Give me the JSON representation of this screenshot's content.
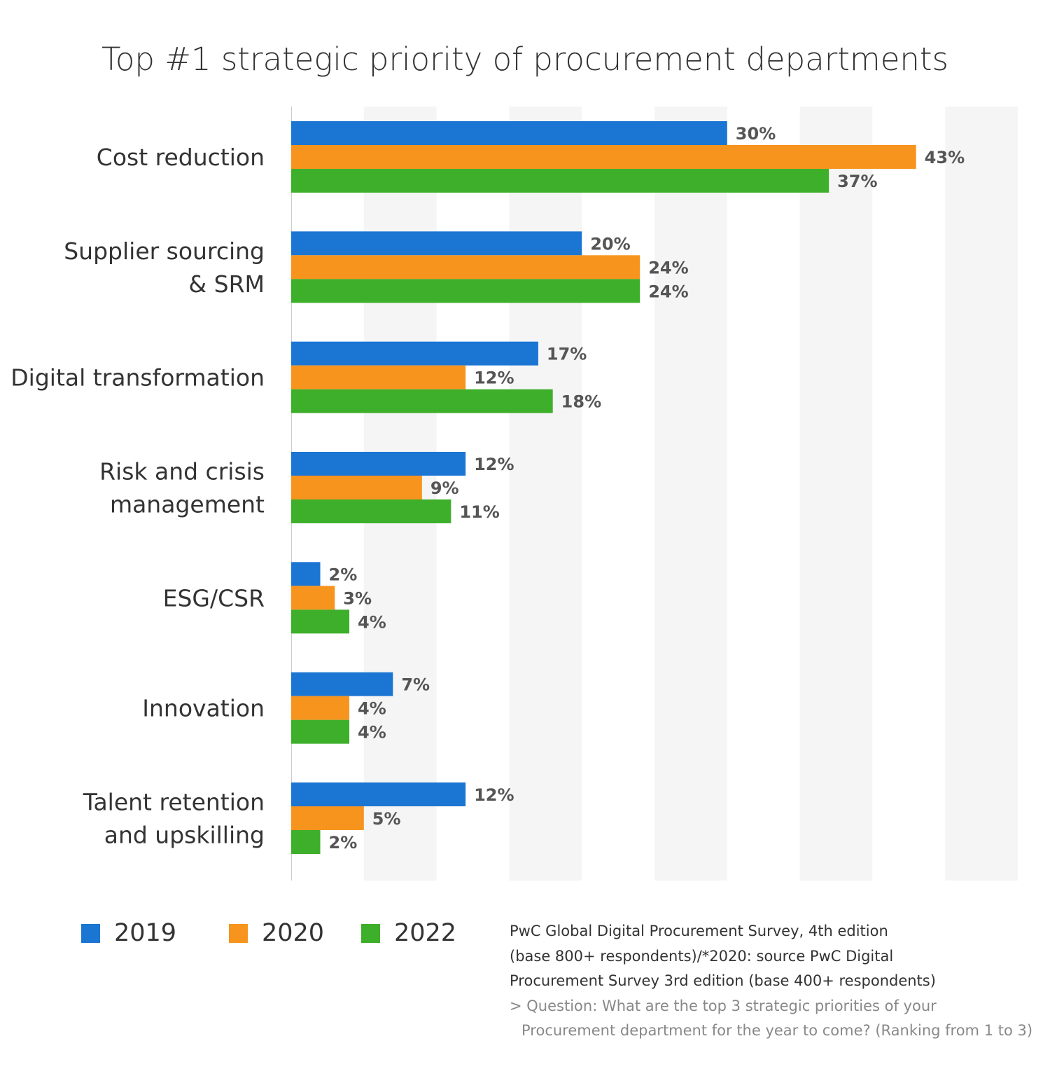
{
  "chart_data": {
    "type": "bar",
    "orientation": "horizontal",
    "title": "Top #1 strategic priority of procurement departments",
    "categories": [
      "Cost reduction",
      "Supplier sourcing\n& SRM",
      "Digital transformation",
      "Risk and crisis\nmanagement",
      "ESG/CSR",
      "Innovation",
      "Talent retention\nand upskilling"
    ],
    "series": [
      {
        "name": "2019",
        "color": "#1b75d3",
        "values": [
          30,
          20,
          17,
          12,
          2,
          7,
          12
        ]
      },
      {
        "name": "2020",
        "color": "#f7941e",
        "values": [
          43,
          24,
          12,
          9,
          3,
          4,
          5
        ]
      },
      {
        "name": "2022",
        "color": "#3eaf2b",
        "values": [
          37,
          24,
          18,
          11,
          4,
          4,
          2
        ]
      }
    ],
    "value_suffix": "%",
    "xlim": [
      0,
      50
    ],
    "grid": "alternating vertical bands every 5%",
    "legend_placement": "bottom-left"
  },
  "footnote": {
    "lines": [
      "PwC Global Digital Procurement Survey, 4th edition",
      "(base 800+ respondents)/*2020: source PwC Digital",
      "Procurement Survey 3rd edition (base 400+ respondents)"
    ],
    "question_lines": [
      "> Question: What are the top 3 strategic priorities of your",
      "Procurement department for the year to come? (Ranking from 1 to 3)"
    ]
  }
}
